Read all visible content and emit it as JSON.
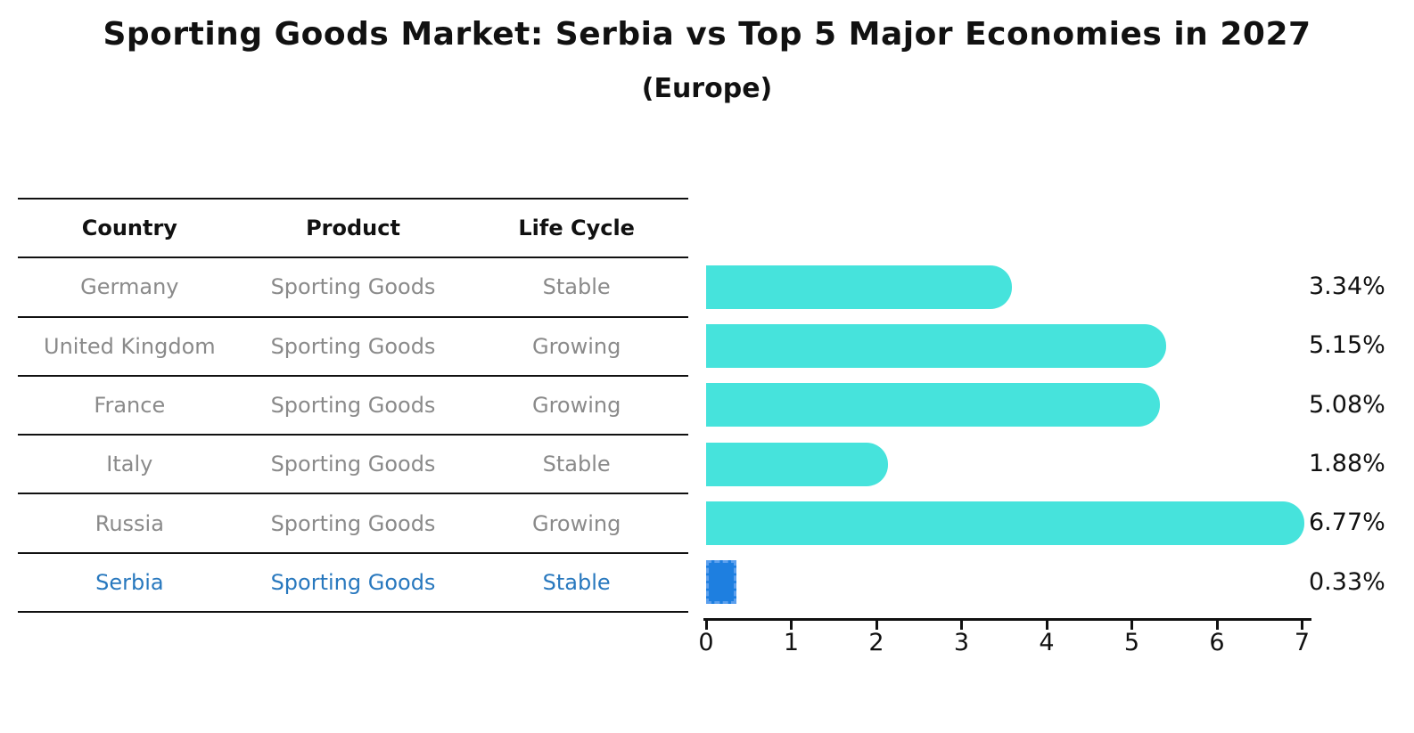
{
  "title": "Sporting Goods Market: Serbia vs Top 5 Major Economies in 2027",
  "subtitle": "(Europe)",
  "table": {
    "headers": [
      "Country",
      "Product",
      "Life Cycle"
    ],
    "rows": [
      {
        "country": "Germany",
        "product": "Sporting Goods",
        "life_cycle": "Stable",
        "highlighted": false
      },
      {
        "country": "United Kingdom",
        "product": "Sporting Goods",
        "life_cycle": "Growing",
        "highlighted": false
      },
      {
        "country": "France",
        "product": "Sporting Goods",
        "life_cycle": "Growing",
        "highlighted": false
      },
      {
        "country": "Italy",
        "product": "Sporting Goods",
        "life_cycle": "Stable",
        "highlighted": false
      },
      {
        "country": "Russia",
        "product": "Sporting Goods",
        "life_cycle": "Growing",
        "highlighted": false
      },
      {
        "country": "Serbia",
        "product": "Sporting Goods",
        "life_cycle": "Stable",
        "highlighted": true
      }
    ]
  },
  "chart_data": {
    "type": "bar",
    "orientation": "horizontal",
    "title": "Sporting Goods Market: Serbia vs Top 5 Major Economies in 2027",
    "subtitle": "(Europe)",
    "categories": [
      "Germany",
      "United Kingdom",
      "France",
      "Italy",
      "Russia",
      "Serbia"
    ],
    "values": [
      3.34,
      5.15,
      5.08,
      1.88,
      6.77,
      0.33
    ],
    "value_labels": [
      "3.34%",
      "5.15%",
      "5.08%",
      "1.88%",
      "6.77%",
      "0.33%"
    ],
    "highlight_index": 5,
    "xlim": [
      0,
      7
    ],
    "xtick_labels": [
      "0",
      "1",
      "2",
      "3",
      "4",
      "5",
      "6",
      "7"
    ],
    "grid": false,
    "legend": "none",
    "bar_color": "#46e3dc",
    "highlight_bar_color": "#1e7fe0",
    "highlight_bar_border_color": "#5ca0ee",
    "highlight_text_color": "#2878be",
    "row_text_color": "#8a8a8a",
    "axis_color": "#111111"
  }
}
